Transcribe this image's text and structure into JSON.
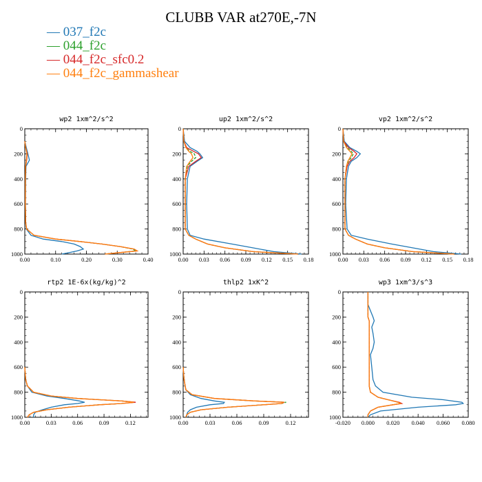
{
  "title": "CLUBB VAR at270E,-7N",
  "legend": [
    {
      "name": "037_f2c",
      "color": "#1f77b4"
    },
    {
      "name": "044_f2c",
      "color": "#2ca02c"
    },
    {
      "name": "044_f2c_sfc0.2",
      "color": "#d62728"
    },
    {
      "name": "044_f2c_gammashear",
      "color": "#ff7f0e"
    }
  ],
  "chart_data": [
    {
      "type": "line",
      "title": "wp2   1xm^2/s^2",
      "xlim": [
        0,
        0.4
      ],
      "ylim": [
        0,
        1000
      ],
      "y_inverted": true,
      "xticks": [
        "0.00",
        "0.10",
        "0.20",
        "0.30",
        "0.40"
      ],
      "yticks": [
        "0",
        "200",
        "400",
        "600",
        "800",
        "1000"
      ],
      "y": [
        100,
        150,
        200,
        250,
        300,
        400,
        600,
        750,
        800,
        850,
        880,
        900,
        920,
        940,
        960,
        975,
        990,
        1000
      ],
      "series": [
        {
          "name": "037_f2c",
          "x": [
            0.0,
            0.005,
            0.01,
            0.015,
            0.004,
            0.003,
            0.002,
            0.003,
            0.005,
            0.02,
            0.06,
            0.12,
            0.16,
            0.18,
            0.19,
            0.17,
            0.14,
            0.12
          ]
        },
        {
          "name": "044_f2c",
          "x": [
            0.0,
            0.003,
            0.008,
            0.006,
            0.003,
            0.002,
            0.002,
            0.003,
            0.006,
            0.03,
            0.1,
            0.18,
            0.25,
            0.31,
            0.35,
            0.36,
            0.3,
            0.26
          ]
        },
        {
          "name": "044_f2c_sfc0.2",
          "x": [
            0.0,
            0.003,
            0.008,
            0.006,
            0.003,
            0.002,
            0.002,
            0.003,
            0.006,
            0.03,
            0.1,
            0.18,
            0.25,
            0.31,
            0.355,
            0.365,
            0.3,
            0.26
          ]
        },
        {
          "name": "044_f2c_gammashear",
          "x": [
            0.0,
            0.003,
            0.007,
            0.005,
            0.003,
            0.002,
            0.002,
            0.003,
            0.006,
            0.03,
            0.1,
            0.18,
            0.25,
            0.31,
            0.355,
            0.365,
            0.3,
            0.26
          ]
        }
      ]
    },
    {
      "type": "line",
      "title": "up2   1xm^2/s^2",
      "xlim": [
        0,
        0.18
      ],
      "ylim": [
        0,
        1000
      ],
      "y_inverted": true,
      "xticks": [
        "0.00",
        "0.03",
        "0.06",
        "0.09",
        "0.12",
        "0.15",
        "0.18"
      ],
      "yticks": [
        "0",
        "200",
        "400",
        "600",
        "800",
        "1000"
      ],
      "y": [
        0,
        100,
        150,
        180,
        200,
        230,
        260,
        300,
        400,
        600,
        800,
        850,
        880,
        920,
        950,
        980,
        1000
      ],
      "series": [
        {
          "name": "037_f2c",
          "x": [
            0.0,
            0.002,
            0.01,
            0.02,
            0.024,
            0.028,
            0.02,
            0.01,
            0.006,
            0.005,
            0.006,
            0.01,
            0.03,
            0.07,
            0.1,
            0.13,
            0.17
          ]
        },
        {
          "name": "044_f2c",
          "x": [
            0.0,
            0.001,
            0.004,
            0.01,
            0.016,
            0.018,
            0.012,
            0.006,
            0.003,
            0.003,
            0.003,
            0.008,
            0.018,
            0.035,
            0.06,
            0.1,
            0.165
          ]
        },
        {
          "name": "044_f2c_sfc0.2",
          "x": [
            0.0,
            0.001,
            0.005,
            0.015,
            0.022,
            0.026,
            0.018,
            0.008,
            0.003,
            0.003,
            0.003,
            0.008,
            0.018,
            0.035,
            0.06,
            0.1,
            0.165
          ]
        },
        {
          "name": "044_f2c_gammashear",
          "x": [
            0.0,
            0.001,
            0.004,
            0.008,
            0.012,
            0.014,
            0.01,
            0.005,
            0.003,
            0.003,
            0.003,
            0.008,
            0.018,
            0.035,
            0.06,
            0.1,
            0.165
          ]
        }
      ]
    },
    {
      "type": "line",
      "title": "vp2   1xm^2/s^2",
      "xlim": [
        0,
        0.18
      ],
      "ylim": [
        0,
        1000
      ],
      "y_inverted": true,
      "xticks": [
        "0.00",
        "0.03",
        "0.06",
        "0.09",
        "0.12",
        "0.15",
        "0.18"
      ],
      "yticks": [
        "0",
        "200",
        "400",
        "600",
        "800",
        "1000"
      ],
      "y": [
        0,
        100,
        150,
        180,
        200,
        230,
        260,
        300,
        400,
        600,
        800,
        850,
        880,
        920,
        950,
        980,
        1000
      ],
      "series": [
        {
          "name": "037_f2c",
          "x": [
            0.0,
            0.002,
            0.01,
            0.02,
            0.025,
            0.02,
            0.012,
            0.008,
            0.005,
            0.004,
            0.006,
            0.012,
            0.035,
            0.07,
            0.1,
            0.13,
            0.17
          ]
        },
        {
          "name": "044_f2c",
          "x": [
            0.0,
            0.001,
            0.006,
            0.012,
            0.015,
            0.012,
            0.008,
            0.005,
            0.003,
            0.003,
            0.003,
            0.008,
            0.018,
            0.035,
            0.06,
            0.1,
            0.16
          ]
        },
        {
          "name": "044_f2c_sfc0.2",
          "x": [
            0.0,
            0.001,
            0.008,
            0.016,
            0.02,
            0.016,
            0.01,
            0.006,
            0.003,
            0.003,
            0.003,
            0.008,
            0.018,
            0.035,
            0.06,
            0.1,
            0.16
          ]
        },
        {
          "name": "044_f2c_gammashear",
          "x": [
            0.0,
            0.001,
            0.005,
            0.01,
            0.013,
            0.01,
            0.007,
            0.005,
            0.003,
            0.003,
            0.003,
            0.008,
            0.018,
            0.035,
            0.06,
            0.1,
            0.16
          ]
        }
      ]
    },
    {
      "type": "line",
      "title": "rtp2   1E-6x(kg/kg)^2",
      "xlim": [
        0,
        0.14
      ],
      "ylim": [
        0,
        1000
      ],
      "y_inverted": true,
      "xticks": [
        "0.00",
        "0.03",
        "0.06",
        "0.09",
        "0.12"
      ],
      "yticks": [
        "0",
        "200",
        "400",
        "600",
        "800",
        "1000"
      ],
      "y": [
        600,
        700,
        750,
        800,
        830,
        850,
        870,
        880,
        890,
        900,
        920,
        940,
        960,
        980,
        1000
      ],
      "series": [
        {
          "name": "037_f2c",
          "x": [
            0.0,
            0.001,
            0.003,
            0.008,
            0.025,
            0.045,
            0.062,
            0.068,
            0.06,
            0.045,
            0.03,
            0.02,
            0.012,
            0.01,
            0.01
          ]
        },
        {
          "name": "044_f2c",
          "x": [
            0.0,
            0.001,
            0.003,
            0.01,
            0.03,
            0.06,
            0.11,
            0.125,
            0.11,
            0.085,
            0.05,
            0.025,
            0.01,
            0.005,
            0.003
          ]
        },
        {
          "name": "044_f2c_sfc0.2",
          "x": [
            0.0,
            0.001,
            0.003,
            0.01,
            0.03,
            0.06,
            0.11,
            0.126,
            0.11,
            0.085,
            0.05,
            0.025,
            0.01,
            0.005,
            0.003
          ]
        },
        {
          "name": "044_f2c_gammashear",
          "x": [
            0.0,
            0.001,
            0.003,
            0.01,
            0.03,
            0.06,
            0.11,
            0.124,
            0.11,
            0.085,
            0.05,
            0.025,
            0.01,
            0.005,
            0.003
          ]
        }
      ]
    },
    {
      "type": "line",
      "title": "thlp2   1xK^2",
      "xlim": [
        0,
        0.14
      ],
      "ylim": [
        0,
        1000
      ],
      "y_inverted": true,
      "xticks": [
        "0.00",
        "0.03",
        "0.06",
        "0.09",
        "0.12"
      ],
      "yticks": [
        "0",
        "200",
        "400",
        "600",
        "800",
        "1000"
      ],
      "y": [
        600,
        700,
        780,
        820,
        850,
        870,
        880,
        890,
        900,
        920,
        940,
        960,
        980,
        1000
      ],
      "series": [
        {
          "name": "037_f2c",
          "x": [
            0.0,
            0.001,
            0.003,
            0.008,
            0.02,
            0.035,
            0.046,
            0.045,
            0.03,
            0.015,
            0.008,
            0.005,
            0.004,
            0.004
          ]
        },
        {
          "name": "044_f2c",
          "x": [
            0.0,
            0.001,
            0.003,
            0.01,
            0.035,
            0.08,
            0.115,
            0.11,
            0.09,
            0.05,
            0.02,
            0.008,
            0.004,
            0.003
          ]
        },
        {
          "name": "044_f2c_sfc0.2",
          "x": [
            0.0,
            0.001,
            0.003,
            0.01,
            0.035,
            0.08,
            0.113,
            0.11,
            0.09,
            0.05,
            0.02,
            0.008,
            0.004,
            0.003
          ]
        },
        {
          "name": "044_f2c_gammashear",
          "x": [
            0.0,
            0.001,
            0.003,
            0.01,
            0.035,
            0.08,
            0.112,
            0.11,
            0.09,
            0.05,
            0.02,
            0.008,
            0.004,
            0.003
          ]
        }
      ]
    },
    {
      "type": "line",
      "title": "wp3   1xm^3/s^3",
      "xlim": [
        -0.02,
        0.08
      ],
      "ylim": [
        0,
        1000
      ],
      "y_inverted": true,
      "xticks": [
        "-0.020",
        "0.000",
        "0.020",
        "0.040",
        "0.060",
        "0.080"
      ],
      "yticks": [
        "0",
        "200",
        "400",
        "600",
        "800",
        "1000"
      ],
      "y": [
        0,
        100,
        150,
        200,
        230,
        280,
        330,
        400,
        450,
        500,
        600,
        700,
        750,
        800,
        840,
        860,
        880,
        890,
        900,
        920,
        950,
        980,
        1000
      ],
      "series": [
        {
          "name": "037_f2c",
          "x": [
            0.0,
            0.0,
            0.002,
            0.004,
            0.005,
            0.003,
            0.004,
            0.005,
            0.004,
            0.002,
            0.003,
            0.004,
            0.006,
            0.012,
            0.035,
            0.06,
            0.075,
            0.076,
            0.07,
            0.04,
            0.01,
            0.002,
            0.0
          ]
        },
        {
          "name": "044_f2c",
          "x": [
            0.0,
            0.0,
            0.0,
            0.0,
            0.001,
            0.001,
            0.001,
            0.001,
            0.001,
            0.001,
            0.001,
            0.001,
            0.001,
            0.002,
            0.008,
            0.016,
            0.024,
            0.026,
            0.02,
            0.008,
            0.002,
            0.0,
            0.0
          ]
        },
        {
          "name": "044_f2c_sfc0.2",
          "x": [
            0.0,
            0.0,
            0.0,
            0.0,
            0.001,
            0.001,
            0.001,
            0.001,
            0.001,
            0.001,
            0.001,
            0.001,
            0.001,
            0.002,
            0.008,
            0.016,
            0.025,
            0.027,
            0.02,
            0.008,
            0.002,
            0.0,
            0.0
          ]
        },
        {
          "name": "044_f2c_gammashear",
          "x": [
            0.0,
            0.0,
            0.0,
            0.0,
            0.001,
            0.001,
            0.001,
            0.001,
            0.001,
            0.001,
            0.001,
            0.001,
            0.001,
            0.002,
            0.008,
            0.016,
            0.024,
            0.026,
            0.02,
            0.008,
            0.002,
            0.0,
            0.0
          ]
        }
      ]
    }
  ]
}
